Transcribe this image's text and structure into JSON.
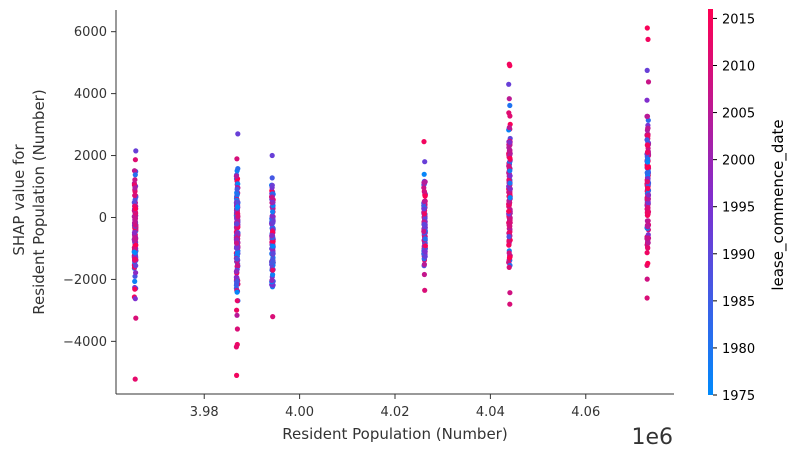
{
  "chart_data": {
    "type": "scatter",
    "title": "",
    "xlabel": "Resident Population (Number)",
    "ylabel_line1": "SHAP value for",
    "ylabel_line2": "Resident Population (Number)",
    "x_offset_label": "1e6",
    "x_tick_labels": [
      "3.98",
      "4.00",
      "4.02",
      "4.04",
      "4.06"
    ],
    "x_ticks": [
      3.98,
      4.0,
      4.02,
      4.04,
      4.06
    ],
    "xlim": [
      3.9615,
      4.0785
    ],
    "y_tick_labels": [
      "6000",
      "4000",
      "2000",
      "0",
      "−2000",
      "−4000"
    ],
    "y_ticks": [
      6000,
      4000,
      2000,
      0,
      -2000,
      -4000
    ],
    "ylim": [
      -5700,
      6700
    ],
    "colorbar": {
      "label": "lease_commence_date",
      "range": [
        1975,
        2016
      ],
      "tick_labels": [
        "2015",
        "2010",
        "2005",
        "2000",
        "1995",
        "1990",
        "1985",
        "1980",
        "1975"
      ],
      "ticks": [
        2015,
        2010,
        2005,
        2000,
        1995,
        1990,
        1985,
        1980,
        1975
      ],
      "color_low": "#008afb",
      "color_mid": "#7e2fd0",
      "color_high": "#ff0052"
    },
    "groups": [
      {
        "x": 3.9655,
        "ymin": -3250,
        "ymax": 2150,
        "outliers": [
          [
            -5220,
            2012
          ]
        ],
        "n": 150,
        "bias": 0.55
      },
      {
        "x": 3.9869,
        "ymin": -3600,
        "ymax": 2700,
        "outliers": [
          [
            -4100,
            2013
          ],
          [
            -4180,
            2012
          ],
          [
            -5100,
            2014
          ]
        ],
        "n": 170,
        "bias": 0.55
      },
      {
        "x": 3.9943,
        "ymin": -3200,
        "ymax": 2000,
        "outliers": [],
        "n": 120,
        "bias": 0.25
      },
      {
        "x": 4.0262,
        "ymin": -2350,
        "ymax": 1800,
        "outliers": [
          [
            2450,
            2014
          ]
        ],
        "n": 110,
        "bias": 0.5
      },
      {
        "x": 4.044,
        "ymin": -2800,
        "ymax": 4300,
        "outliers": [
          [
            4900,
            2015
          ],
          [
            4950,
            2014
          ]
        ],
        "n": 150,
        "bias": 0.7
      },
      {
        "x": 4.073,
        "ymin": -2600,
        "ymax": 4750,
        "outliers": [
          [
            5750,
            2014
          ],
          [
            6120,
            2015
          ]
        ],
        "n": 160,
        "bias": 0.75
      }
    ]
  }
}
